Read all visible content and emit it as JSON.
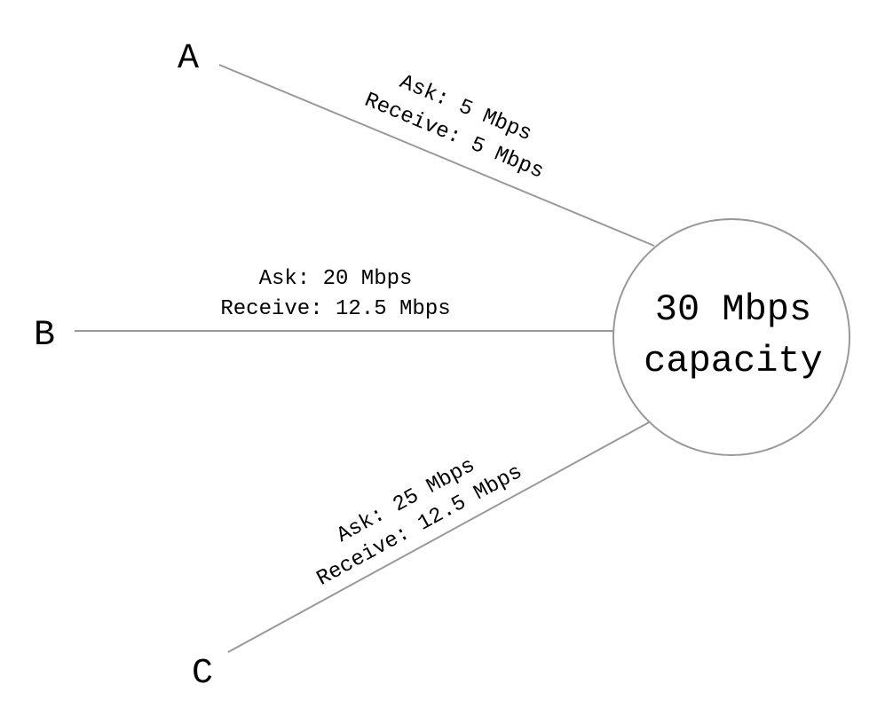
{
  "hub": {
    "line1": "30 Mbps",
    "line2": "capacity"
  },
  "nodes": [
    {
      "id": "a",
      "label": "A",
      "ask": "Ask: 5 Mbps",
      "receive": "Receive: 5 Mbps"
    },
    {
      "id": "b",
      "label": "B",
      "ask": "Ask: 20 Mbps",
      "receive": "Receive: 12.5 Mbps"
    },
    {
      "id": "c",
      "label": "C",
      "ask": "Ask: 25 Mbps",
      "receive": "Receive: 12.5 Mbps"
    }
  ],
  "colors": {
    "line": "#999999",
    "text": "#000000",
    "background": "#ffffff"
  }
}
